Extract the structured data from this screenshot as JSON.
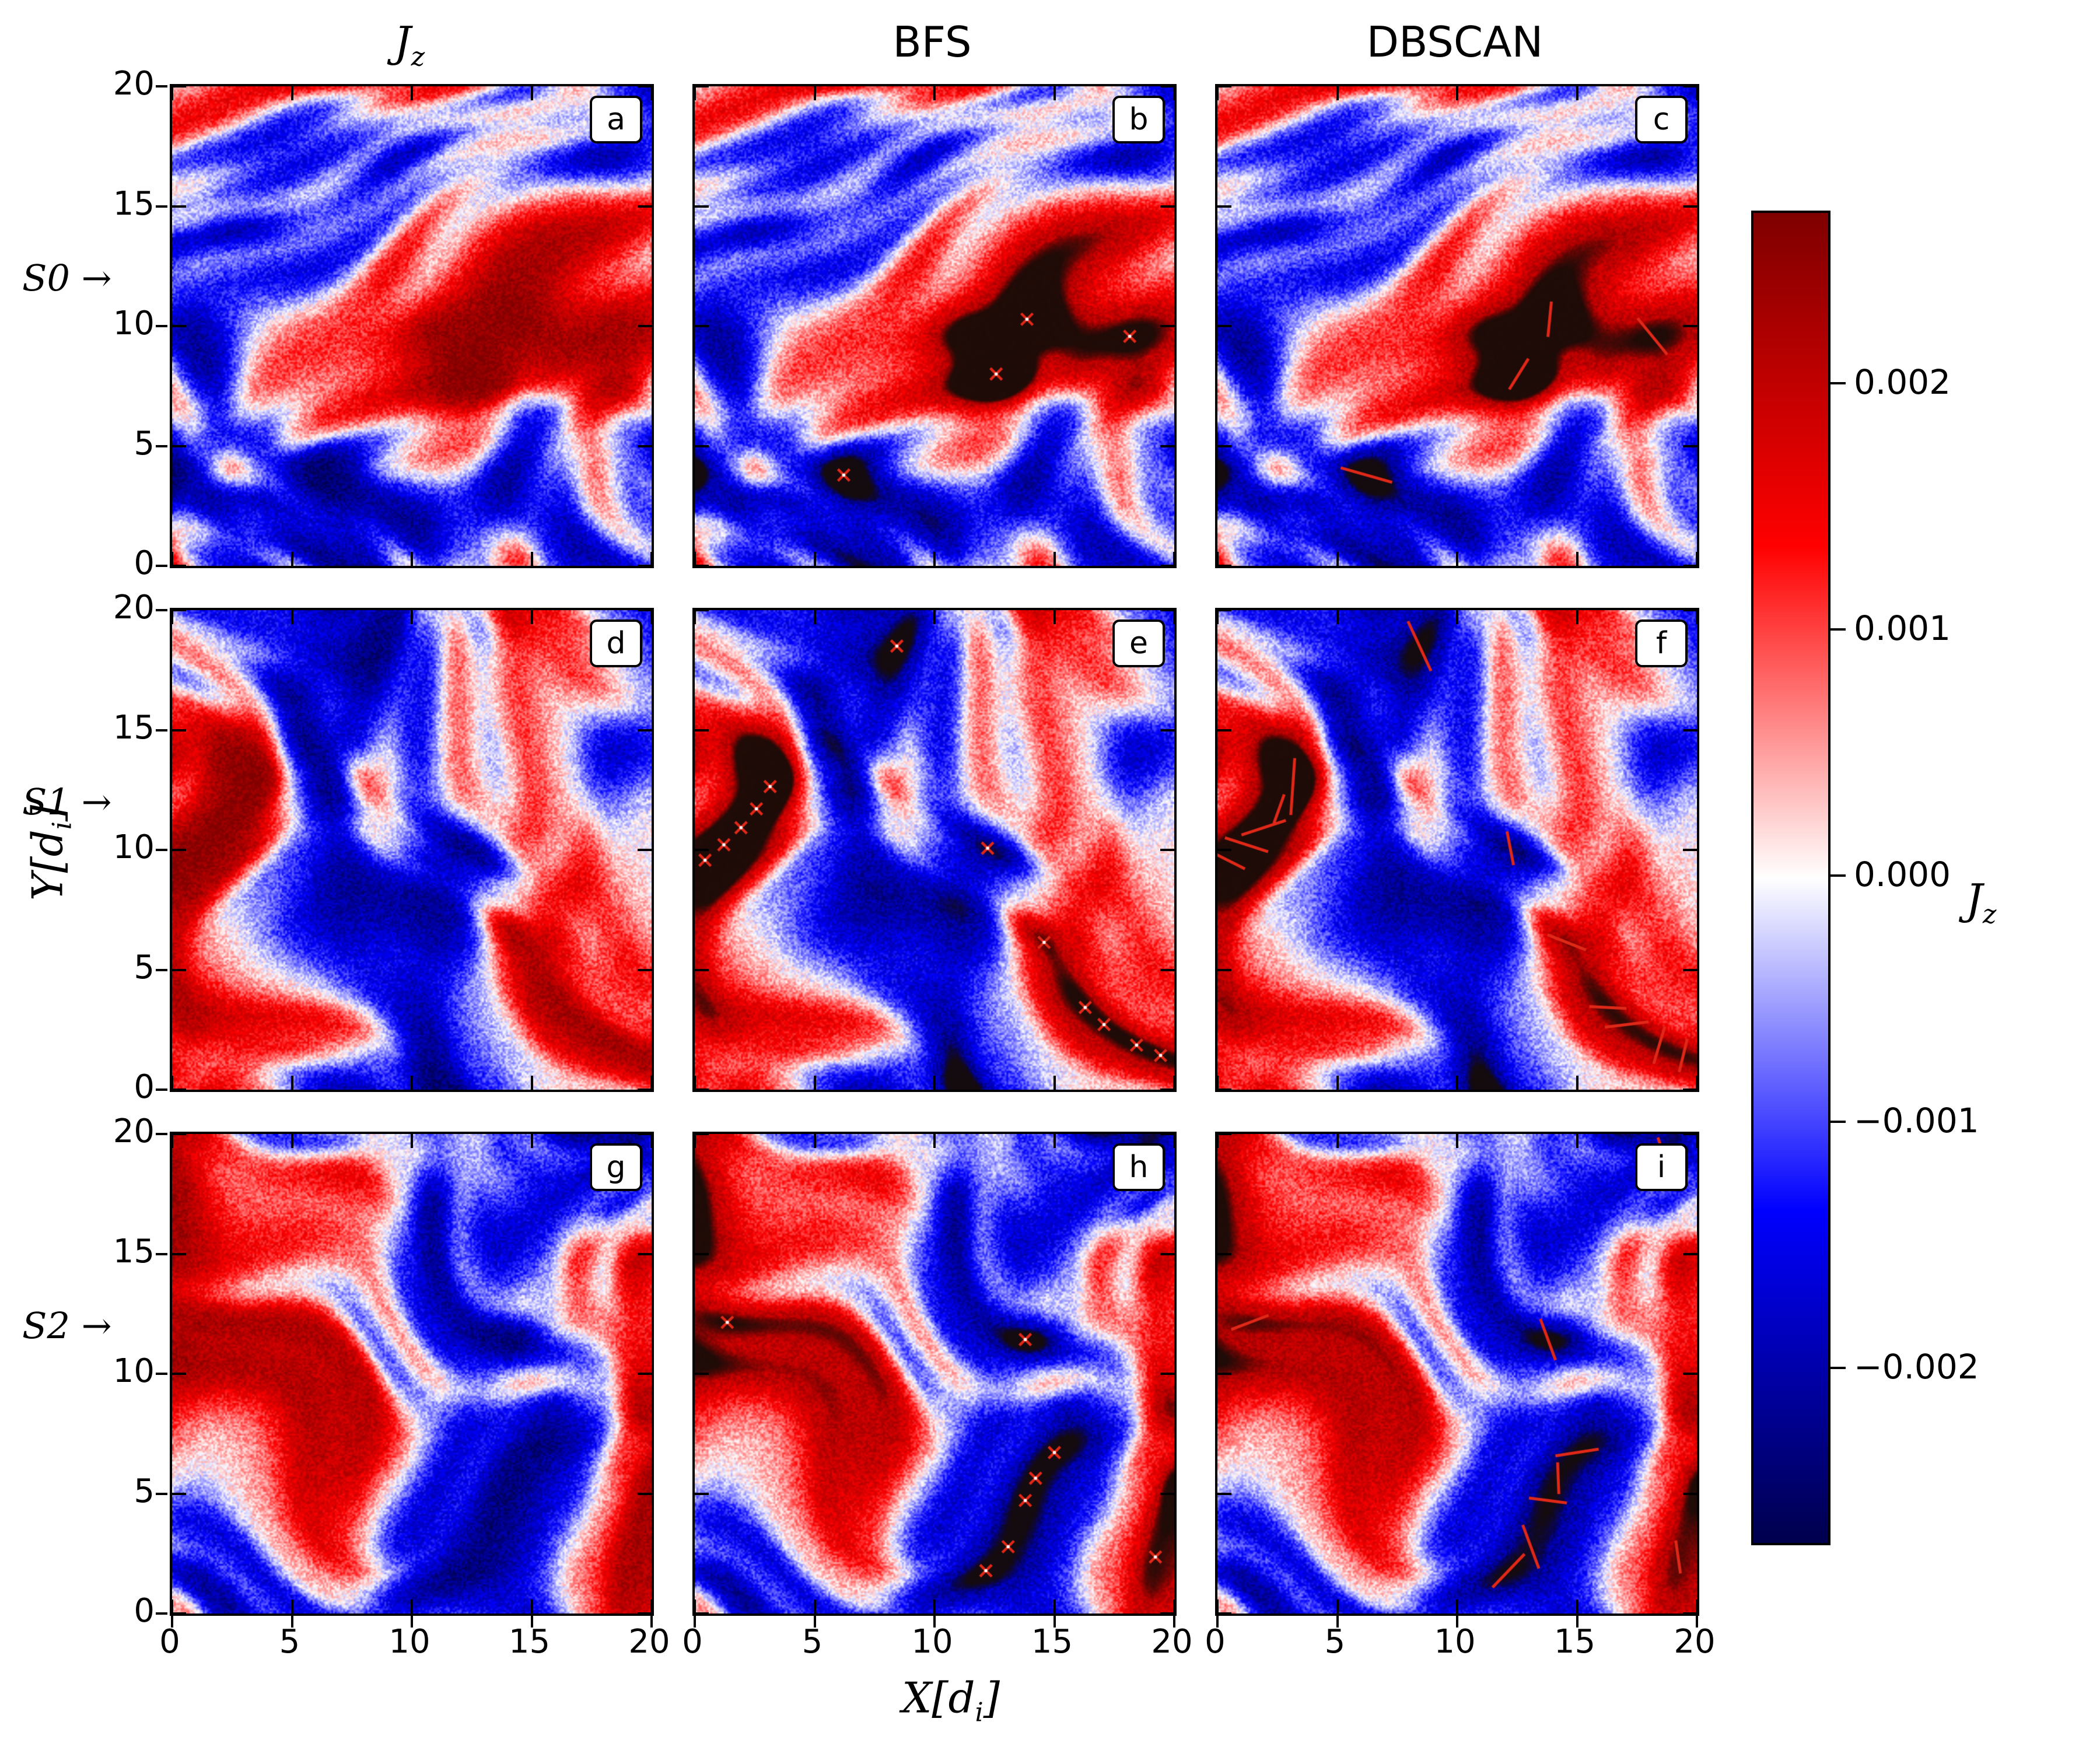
{
  "figure": {
    "columns": [
      {
        "main": "J",
        "sub": "z"
      },
      {
        "main": "BFS",
        "sub": ""
      },
      {
        "main": "DBSCAN",
        "sub": ""
      }
    ],
    "rows": [
      {
        "label": "S0 →"
      },
      {
        "label": "S1 →"
      },
      {
        "label": "S2 →"
      }
    ],
    "xlabel": {
      "pre": "X[d",
      "sub": "i",
      "post": "]"
    },
    "ylabel": {
      "pre": "Y[d",
      "sub": "i",
      "post": "]"
    },
    "colorbar_label": {
      "main": "J",
      "sub": "z"
    },
    "colorbar_tick_labels": [
      "0.002",
      "0.001",
      "0.000",
      "−0.001",
      "−0.002"
    ]
  },
  "chart_data": {
    "type": "heatmap",
    "layout": {
      "grid": "3x3",
      "shared_axes": true,
      "colorbar_position": "right"
    },
    "columns": [
      "Jz",
      "BFS",
      "DBSCAN"
    ],
    "rows": [
      "S0",
      "S1",
      "S2"
    ],
    "panel_labels": [
      [
        "a",
        "b",
        "c"
      ],
      [
        "d",
        "e",
        "f"
      ],
      [
        "g",
        "h",
        "i"
      ]
    ],
    "x": {
      "label": "X[di]",
      "range": [
        0,
        20
      ],
      "ticks": [
        0,
        5,
        10,
        15,
        20
      ]
    },
    "y": {
      "label": "Y[di]",
      "range": [
        0,
        20
      ],
      "ticks": [
        0,
        5,
        10,
        15,
        20
      ]
    },
    "colorbar": {
      "label": "Jz",
      "ticks": [
        0.002,
        0.001,
        0.0,
        -0.001,
        -0.002
      ],
      "range_estimate": [
        -0.0027,
        0.0027
      ],
      "colormap": "seismic (dark navy → blue → white → red → dark maroon)"
    },
    "grid": false,
    "description": "Out-of-plane current density Jz for three turbulence snapshots S0–S2 (rows). Column 1 shows the raw Jz field; columns 2 and 3 show current-sheet regions identified by BFS and DBSCAN as dark overlays, with red x-with-dot markers (BFS) and red line-segment markers (DBSCAN) at cluster locations."
  }
}
